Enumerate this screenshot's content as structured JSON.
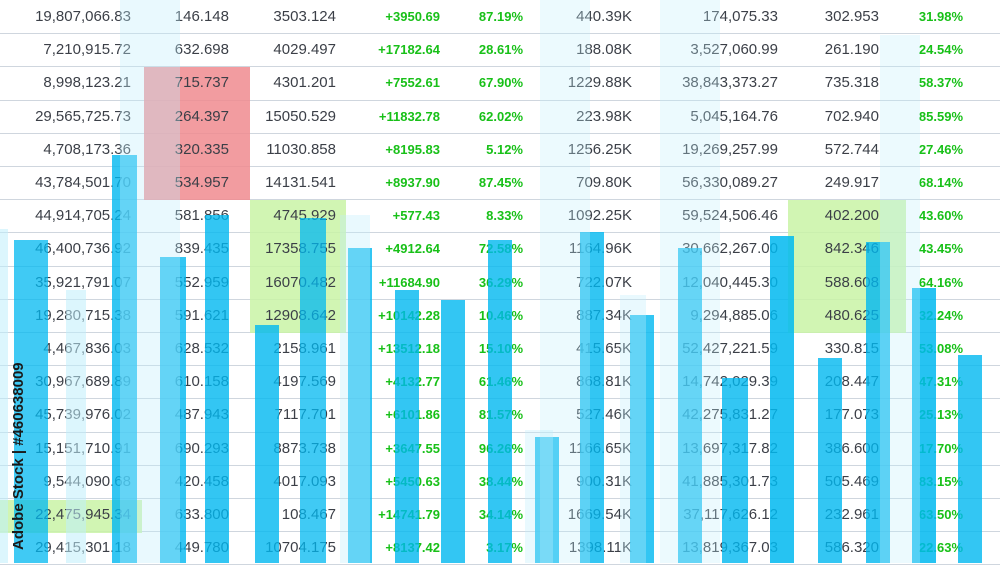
{
  "chart_data": {
    "type": "table",
    "columns": [
      {
        "key": "c1",
        "values": [
          "19,807,066.83",
          "7,210,915.72",
          "8,998,123.21",
          "29,565,725.73",
          "4,708,173.36",
          "43,784,501.70",
          "44,914,705.24",
          "46,400,736.92",
          "35,921,791.07",
          "19,280,715.38",
          "4,467,836.03",
          "30,967,689.89",
          "45,739,976.02",
          "15,151,710.91",
          "9,544,090.68",
          "22,475,945.34",
          "29,415,301.18"
        ]
      },
      {
        "key": "c2",
        "values": [
          "146.148",
          "632.698",
          "715.737",
          "264.397",
          "320.335",
          "534.957",
          "581.856",
          "839.435",
          "552.959",
          "591.621",
          "628.532",
          "610.158",
          "487.943",
          "690.293",
          "420.458",
          "633.800",
          "449.780"
        ]
      },
      {
        "key": "c3",
        "values": [
          "3503.124",
          "4029.497",
          "4301.201",
          "15050.529",
          "11030.858",
          "14131.541",
          "4745.929",
          "17358.755",
          "16070.482",
          "12908.642",
          "2158.961",
          "4197.569",
          "7117.701",
          "8873.738",
          "4017.093",
          "108.467",
          "10704.175"
        ]
      },
      {
        "key": "c4",
        "green": true,
        "values": [
          "+3950.69",
          "+17182.64",
          "+7552.61",
          "+11832.78",
          "+8195.83",
          "+8937.90",
          "+577.43",
          "+4912.64",
          "+11684.90",
          "+10142.28",
          "+13512.18",
          "+4132.77",
          "+6101.86",
          "+3647.55",
          "+5450.63",
          "+14741.79",
          "+8137.42"
        ]
      },
      {
        "key": "c5",
        "green": true,
        "values": [
          "87.19%",
          "28.61%",
          "67.90%",
          "62.02%",
          "5.12%",
          "87.45%",
          "8.33%",
          "72.58%",
          "36.29%",
          "10.46%",
          "15.10%",
          "61.46%",
          "81.57%",
          "96.26%",
          "38.44%",
          "34.14%",
          "3.17%"
        ]
      },
      {
        "key": "c6",
        "values": [
          "440.39K",
          "188.08K",
          "1229.88K",
          "223.98K",
          "1256.25K",
          "709.80K",
          "1092.25K",
          "1164.96K",
          "722.07K",
          "887.34K",
          "415.65K",
          "868.81K",
          "527.46K",
          "1166.65K",
          "900.31K",
          "1669.54K",
          "1398.11K"
        ]
      },
      {
        "key": "c7",
        "values": [
          "174,075.33",
          "3,527,060.99",
          "38,843,373.27",
          "5,045,164.76",
          "19,269,257.99",
          "56,330,089.27",
          "59,524,506.46",
          "30,662,267.00",
          "12,040,445.30",
          "9,294,885.06",
          "52,427,221.59",
          "14,742,029.39",
          "42,275,831.27",
          "13,697,317.82",
          "41,885,301.73",
          "37,117,626.12",
          "13,819,367.03"
        ]
      },
      {
        "key": "c8",
        "values": [
          "302.953",
          "261.190",
          "735.318",
          "702.940",
          "572.744",
          "249.917",
          "402.200",
          "842.346",
          "588.608",
          "480.625",
          "330.815",
          "208.447",
          "177.073",
          "386.600",
          "505.469",
          "232.961",
          "586.320"
        ]
      },
      {
        "key": "c9",
        "green": true,
        "values": [
          "31.98%",
          "24.54%",
          "58.37%",
          "85.59%",
          "27.46%",
          "68.14%",
          "43.60%",
          "43.45%",
          "64.16%",
          "32.24%",
          "53.08%",
          "47.31%",
          "25.13%",
          "17.70%",
          "83.15%",
          "63.50%",
          "22.63%"
        ]
      }
    ]
  },
  "colors": {
    "bar": "#00b8f0",
    "bar_light": "#bfeefc",
    "highlight_red": "#f08b8f",
    "highlight_green": "#c9f3a6",
    "positive_text": "#18c018",
    "text": "#3b3f47",
    "grid": "#cfd6de"
  },
  "watermark": "Adobe Stock | #460638009"
}
